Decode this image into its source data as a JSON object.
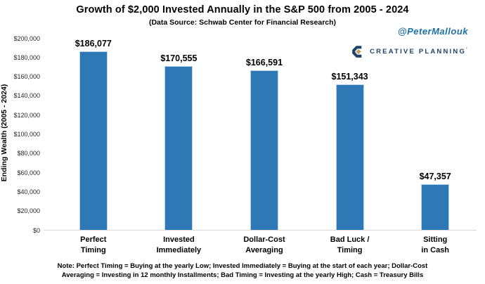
{
  "header": {
    "title": "Growth of $2,000 Invested Annually in the S&P 500 from 2005 - 2024",
    "subtitle": "(Data Source: Schwab Center for Financial Research)",
    "handle": "@PeterMallouk",
    "brand_name": "CREATIVE PLANNING",
    "brand_trademark": "’"
  },
  "chart_data": {
    "type": "bar",
    "title": "Growth of $2,000 Invested Annually in the S&P 500 from 2005 - 2024",
    "subtitle": "(Data Source: Schwab Center for Financial Research)",
    "categories": [
      "Perfect\nTiming",
      "Invested\nImmediately",
      "Dollar-Cost\nAveraging",
      "Bad Luck /\nTiming",
      "Sitting\nin Cash"
    ],
    "values": [
      186077,
      170555,
      166591,
      151343,
      47357
    ],
    "value_labels": [
      "$186,077",
      "$170,555",
      "$166,591",
      "$151,343",
      "$47,357"
    ],
    "xlabel": "",
    "ylabel": "Ending Wealth (2005 - 2024)",
    "ylim": [
      0,
      200000
    ],
    "ytick_step": 20000,
    "yticks": [
      "$0",
      "$20,000",
      "$40,000",
      "$60,000",
      "$80,000",
      "$100,000",
      "$120,000",
      "$140,000",
      "$160,000",
      "$180,000",
      "$200,000"
    ],
    "grid": false,
    "legend": null,
    "bar_color": "#2E79B5"
  },
  "footnote": {
    "line1": "Note: Perfect Timing = Buying at the yearly Low; Invested Immediately = Buying at the start of each year; Dollar-Cost",
    "line2": "Averaging = Investing in 12 monthly Installments; Bad Timing = Investing at the yearly High; Cash = Treasury Bills"
  },
  "colors": {
    "bar": "#2E79B5",
    "navy": "#1D4467",
    "gold": "#BFA064",
    "handle_blue": "#1D6FA8",
    "axis_line": "#D9D9D9"
  }
}
